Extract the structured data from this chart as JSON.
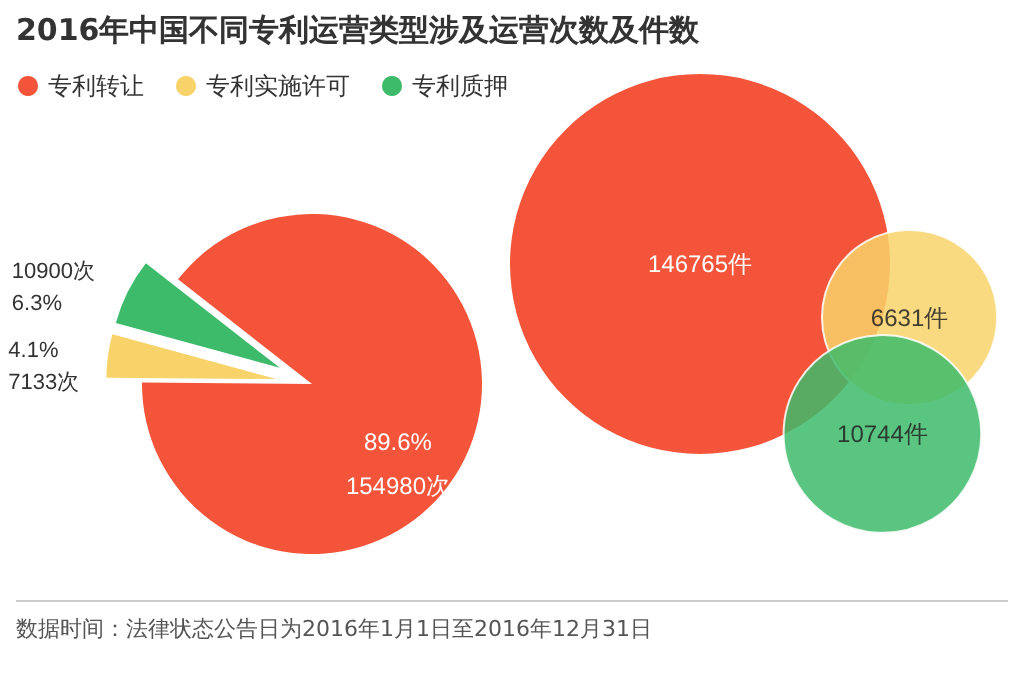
{
  "chart_data": [
    {
      "type": "pie",
      "title": "2016年中国不同专利运营类型涉及运营次数及件数",
      "categories": [
        "专利转让",
        "专利实施许可",
        "专利质押"
      ],
      "values": [
        154980,
        7133,
        10900
      ],
      "colors": [
        "#f4553a",
        "#f8d36a",
        "#3dbb6b"
      ],
      "value_labels": [
        "89.6%\n154980次",
        "4.1%\n7133次",
        "10900次\n6.3%"
      ],
      "legend": "top left",
      "annotations": [
        "数据时间：法律状态公告日为2016年1月1日至2016年12月31日"
      ]
    },
    {
      "type": "other",
      "categories": [
        null,
        null,
        null
      ],
      "values": [
        146765,
        6631,
        10744
      ],
      "colors": [
        "#f4553a",
        "#f8d36a",
        "#3dbb6b"
      ],
      "value_labels": [
        "146765件",
        "6631件",
        "10744件"
      ]
    }
  ]
}
